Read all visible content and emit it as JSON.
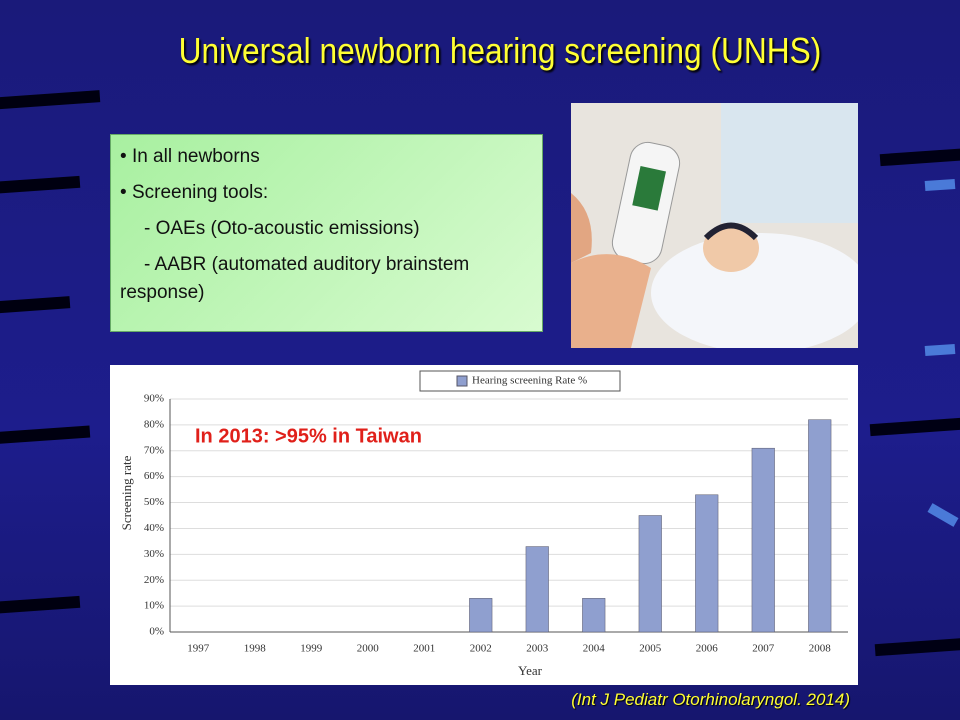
{
  "header": {
    "title": "Universal newborn hearing screening (UNHS)"
  },
  "bullets": [
    "In all newborns",
    "Screening tools:",
    "- OAEs (Oto-acoustic emissions)",
    "- AABR (automated auditory brainstem response)"
  ],
  "citation": "(Int J Pediatr Otorhinolaryngol. 2014)",
  "chart_data": {
    "type": "bar",
    "annotation": "In 2013: >95% in Taiwan",
    "x_label": "Year",
    "y_label": "Screening rate",
    "categories": [
      "1997",
      "1998",
      "1999",
      "2000",
      "2001",
      "2002",
      "2003",
      "2004",
      "2005",
      "2006",
      "2007",
      "2008"
    ],
    "series": [
      {
        "name": "Hearing screening Rate %",
        "color": "#8f9fcf",
        "values": [
          0,
          0,
          0,
          0,
          0,
          13,
          33,
          13,
          45,
          53,
          71,
          82
        ]
      }
    ],
    "ylim": [
      0,
      90
    ],
    "yticks": [
      {
        "value": 0,
        "label": "0%"
      },
      {
        "value": 10,
        "label": "10%"
      },
      {
        "value": 20,
        "label": "20%"
      },
      {
        "value": 30,
        "label": "30%"
      },
      {
        "value": 40,
        "label": "40%"
      },
      {
        "value": 50,
        "label": "50%"
      },
      {
        "value": 60,
        "label": "60%"
      },
      {
        "value": 70,
        "label": "70%"
      },
      {
        "value": 80,
        "label": "80%"
      },
      {
        "value": 90,
        "label": "90%"
      }
    ],
    "grid": true,
    "legend": "top"
  }
}
